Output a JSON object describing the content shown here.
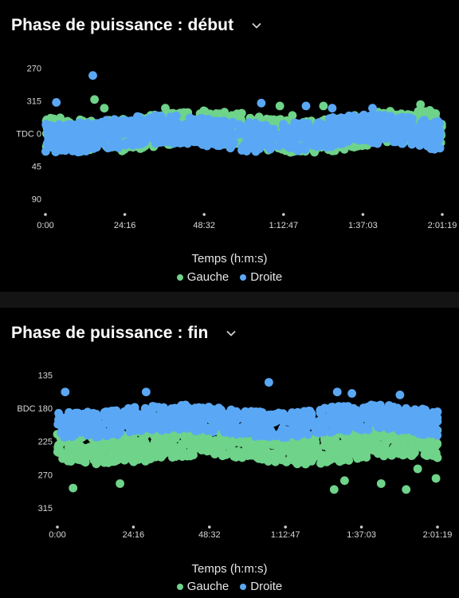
{
  "colors": {
    "gauche": "#6fd38a",
    "droite": "#5aa8f5",
    "background": "#000000"
  },
  "icons": {
    "dropdown": "chevron-down-icon"
  },
  "charts": [
    {
      "title": "Phase de puissance : début",
      "chart_data": {
        "type": "scatter",
        "xlabel": "Temps (h:m:s)",
        "x_ticks": [
          "0:00",
          "24:16",
          "48:32",
          "1:12:47",
          "1:37:03",
          "2:01:19"
        ],
        "xlim_seconds": [
          0,
          7279
        ],
        "y_ticks": [
          "270",
          "315",
          "TDC 0",
          "45",
          "90"
        ],
        "y_tick_values": [
          -90,
          -45,
          0,
          45,
          90
        ],
        "ylim": [
          -105,
          105
        ],
        "y_direction": "down",
        "legend_placement": "bottom-center",
        "series": [
          {
            "name": "Gauche",
            "color": "#6fd38a",
            "typical_range": [
              -25,
              20
            ],
            "outliers": [
              [
                900,
                -47
              ],
              [
                1080,
                -35
              ],
              [
                2200,
                -35
              ],
              [
                2340,
                -28
              ],
              [
                4300,
                -38
              ],
              [
                4530,
                -25
              ],
              [
                5100,
                -38
              ],
              [
                5830,
                -25
              ],
              [
                6880,
                -40
              ],
              [
                7050,
                -32
              ],
              [
                3600,
                -28
              ]
            ]
          },
          {
            "name": "Droite",
            "color": "#5aa8f5",
            "typical_range": [
              -20,
              20
            ],
            "outliers": [
              [
                200,
                -43
              ],
              [
                870,
                -80
              ],
              [
                3960,
                -42
              ],
              [
                4780,
                -38
              ],
              [
                5260,
                -35
              ],
              [
                6000,
                -35
              ]
            ]
          }
        ]
      },
      "legend": [
        "Gauche",
        "Droite"
      ]
    },
    {
      "title": "Phase de puissance : fin",
      "chart_data": {
        "type": "scatter",
        "xlabel": "Temps (h:m:s)",
        "x_ticks": [
          "0:00",
          "24:16",
          "48:32",
          "1:12:47",
          "1:37:03",
          "2:01:19"
        ],
        "xlim_seconds": [
          0,
          7279
        ],
        "y_ticks": [
          "135",
          "BDC 180",
          "225",
          "270",
          "315"
        ],
        "y_tick_values": [
          135,
          180,
          225,
          270,
          315
        ],
        "ylim": [
          125,
          330
        ],
        "y_direction": "down",
        "legend_placement": "bottom-center",
        "series": [
          {
            "name": "Gauche",
            "color": "#6fd38a",
            "typical_range": [
              210,
              250
            ],
            "outliers": [
              [
                300,
                288
              ],
              [
                1200,
                282
              ],
              [
                5300,
                290
              ],
              [
                5500,
                278
              ],
              [
                6200,
                282
              ],
              [
                6680,
                290
              ],
              [
                6900,
                262
              ],
              [
                7250,
                275
              ]
            ]
          },
          {
            "name": "Droite",
            "color": "#5aa8f5",
            "typical_range": [
              180,
              215
            ],
            "outliers": [
              [
                150,
                158
              ],
              [
                1700,
                158
              ],
              [
                4050,
                145
              ],
              [
                5360,
                158
              ],
              [
                5640,
                160
              ],
              [
                6560,
                162
              ]
            ]
          }
        ]
      },
      "legend": [
        "Gauche",
        "Droite"
      ]
    }
  ]
}
